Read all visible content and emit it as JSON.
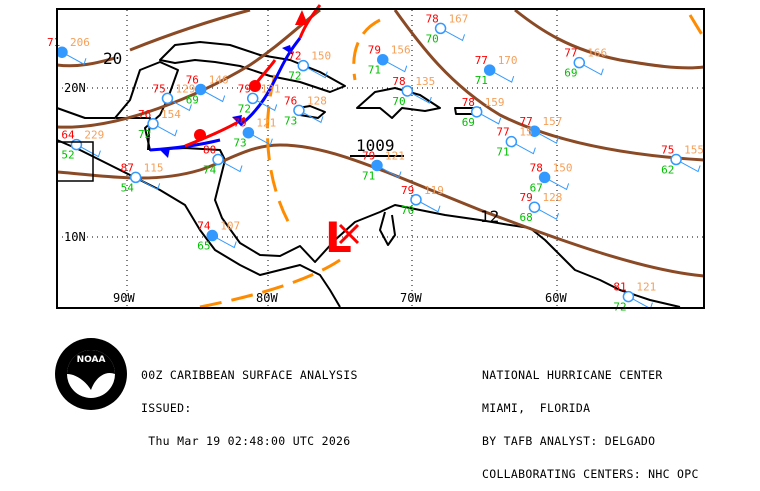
{
  "map": {
    "grid_labels": {
      "lat": [
        "20N",
        "10N"
      ],
      "lon": [
        "90W",
        "80W",
        "70W",
        "60W"
      ]
    },
    "isobar_labels": [
      "20",
      "1009",
      "12"
    ],
    "low_symbol": "L",
    "colors": {
      "isobar": "#8B4A26",
      "cold_front": "#0000FF",
      "warm_front": "#FF0000",
      "trough": "#FF8C00",
      "temp": "#FF0000",
      "dewpoint": "#00C000",
      "pressure": "#F5A05A",
      "station": "#3399FF",
      "weather": "#E000E0"
    },
    "stations": [
      {
        "lon": -94.5,
        "lat": 22.4,
        "t": "71",
        "d": "",
        "p": "206"
      },
      {
        "lon": -77.8,
        "lat": 21.5,
        "t": "72",
        "d": "72",
        "p": "150"
      },
      {
        "lon": -87.2,
        "lat": 19.3,
        "t": "75",
        "d": "",
        "p": "129"
      },
      {
        "lon": -84.9,
        "lat": 19.9,
        "t": "76",
        "d": "69",
        "p": "146"
      },
      {
        "lon": -88.2,
        "lat": 17.6,
        "t": "76",
        "d": "72",
        "p": "154"
      },
      {
        "lon": -81.3,
        "lat": 19.3,
        "t": "79",
        "d": "72",
        "p": "131"
      },
      {
        "lon": -81.6,
        "lat": 17.0,
        "t": "79",
        "d": "73",
        "p": "121"
      },
      {
        "lon": -83.7,
        "lat": 15.2,
        "t": "80",
        "d": "74",
        "p": ""
      },
      {
        "lon": -89.4,
        "lat": 14.0,
        "t": "87",
        "d": "54",
        "p": "115"
      },
      {
        "lon": -84.1,
        "lat": 10.1,
        "t": "74",
        "d": "65",
        "p": "107"
      },
      {
        "lon": -93.5,
        "lat": 16.2,
        "t": "64",
        "d": "52",
        "p": "229"
      },
      {
        "lon": -78.1,
        "lat": 18.5,
        "t": "76",
        "d": "73",
        "p": "128"
      },
      {
        "lon": -72.3,
        "lat": 21.9,
        "t": "79",
        "d": "71",
        "p": "156"
      },
      {
        "lon": -70.6,
        "lat": 19.8,
        "t": "78",
        "d": "70",
        "p": "135"
      },
      {
        "lon": -68.3,
        "lat": 24.0,
        "t": "78",
        "d": "70",
        "p": "167"
      },
      {
        "lon": -64.9,
        "lat": 21.2,
        "t": "77",
        "d": "71",
        "p": "170"
      },
      {
        "lon": -58.7,
        "lat": 21.7,
        "t": "77",
        "d": "69",
        "p": "166"
      },
      {
        "lon": -65.8,
        "lat": 18.4,
        "t": "78",
        "d": "69",
        "p": "159"
      },
      {
        "lon": -61.8,
        "lat": 17.1,
        "t": "77",
        "d": "",
        "p": "157"
      },
      {
        "lon": -63.4,
        "lat": 16.4,
        "t": "77",
        "d": "71",
        "p": "15"
      },
      {
        "lon": -52.0,
        "lat": 15.2,
        "t": "75",
        "d": "62",
        "p": "155"
      },
      {
        "lon": -61.1,
        "lat": 14.0,
        "t": "78",
        "d": "67",
        "p": "150"
      },
      {
        "lon": -61.8,
        "lat": 12.0,
        "t": "79",
        "d": "68",
        "p": "128"
      },
      {
        "lon": -70.0,
        "lat": 12.5,
        "t": "79",
        "d": "70",
        "p": "119"
      },
      {
        "lon": -72.7,
        "lat": 14.8,
        "t": "79",
        "d": "71",
        "p": "121"
      },
      {
        "lon": -55.3,
        "lat": 6.0,
        "t": "81",
        "d": "72",
        "p": "121"
      }
    ]
  },
  "footer": {
    "logo_text": "NOAA",
    "left": [
      "00Z CARIBBEAN SURFACE ANALYSIS",
      "ISSUED:",
      " Thu Mar 19 02:48:00 UTC 2026"
    ],
    "right": [
      "NATIONAL HURRICANE CENTER",
      "MIAMI,  FLORIDA",
      "BY TAFB ANALYST: DELGADO",
      "COLLABORATING CENTERS: NHC OPC"
    ]
  }
}
